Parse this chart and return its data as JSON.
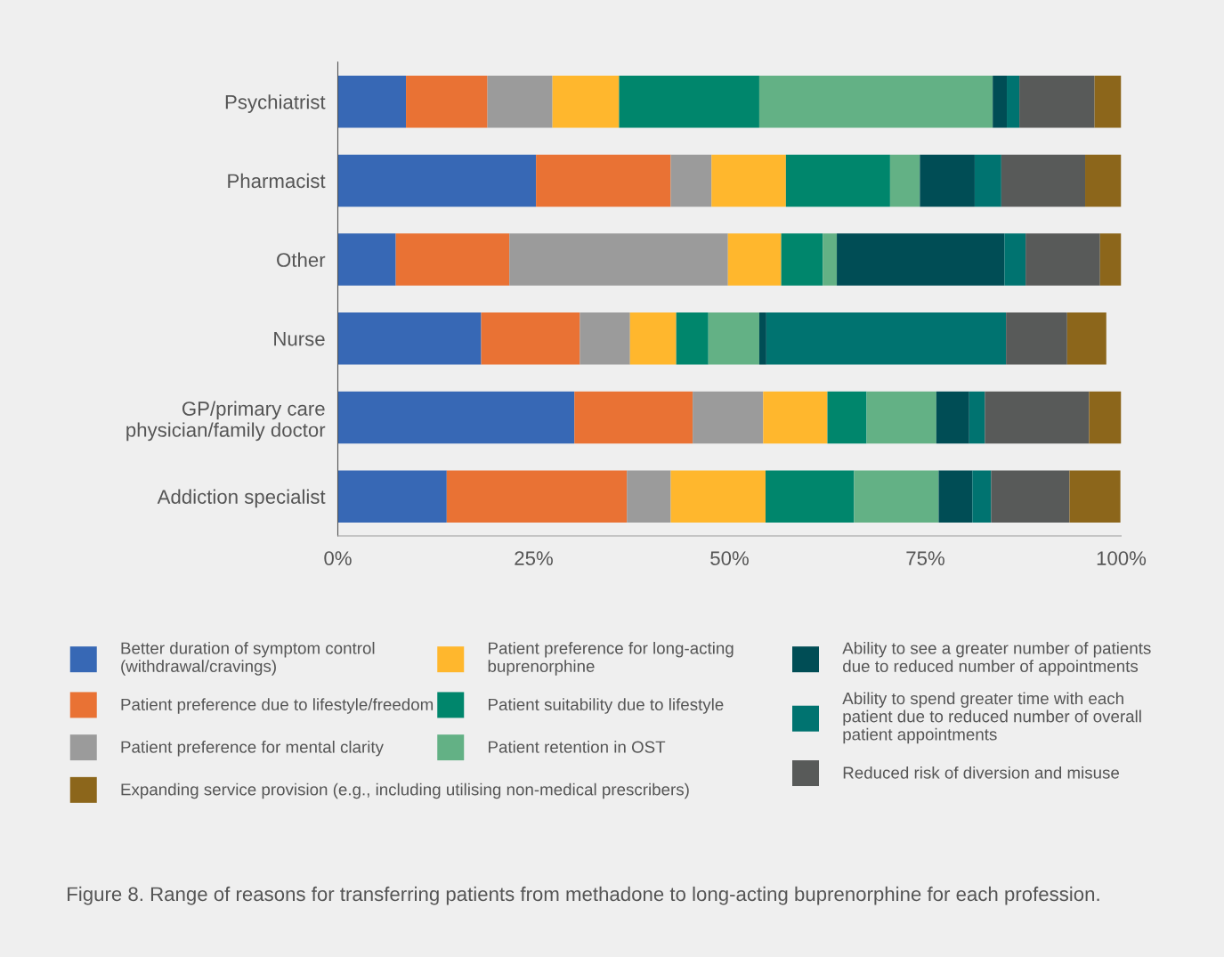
{
  "chart_data": {
    "type": "bar",
    "orientation": "horizontal",
    "stacked": true,
    "categories": [
      "Psychiatrist",
      "Pharmacist",
      "Other",
      "Nurse",
      "GP/primary care\nphysician/family doctor",
      "Addiction specialist"
    ],
    "series": [
      {
        "name": "Better duration of symptom control\n(withdrawal/cravings)",
        "color": "#3768b5",
        "values": [
          8.7,
          25.3,
          7.4,
          18.3,
          30.2,
          13.9
        ]
      },
      {
        "name": "Patient preference due to lifestyle/freedom",
        "color": "#e97234",
        "values": [
          10.4,
          17.2,
          14.5,
          12.6,
          15.1,
          23.0
        ]
      },
      {
        "name": "Patient preference for mental clarity",
        "color": "#9b9b9b",
        "values": [
          8.3,
          5.2,
          27.9,
          6.4,
          9.0,
          5.6
        ]
      },
      {
        "name": "Patient preference for long-acting\nbuprenorphine",
        "color": "#ffb72d",
        "values": [
          8.5,
          9.5,
          6.8,
          5.9,
          8.2,
          12.1
        ]
      },
      {
        "name": "Patient suitability due to lifestyle",
        "color": "#00866c",
        "values": [
          17.9,
          13.3,
          5.3,
          4.1,
          5.0,
          11.3
        ]
      },
      {
        "name": "Patient retention in OST",
        "color": "#63b185",
        "values": [
          29.8,
          3.8,
          1.8,
          6.5,
          8.9,
          10.8
        ]
      },
      {
        "name": "Ability to see a greater number of patients\ndue to reduced number of appointments",
        "color": "#004d55",
        "values": [
          1.8,
          7.0,
          21.4,
          0.9,
          4.2,
          4.3
        ]
      },
      {
        "name": "Ability to spend greater time with each\npatient due to reduced number of overall\npatient appointments",
        "color": "#007370",
        "values": [
          1.6,
          3.4,
          2.7,
          30.6,
          2.0,
          2.4
        ]
      },
      {
        "name": "Reduced risk of diversion and misuse",
        "color": "#585a59",
        "values": [
          9.6,
          10.7,
          9.5,
          7.8,
          13.3,
          10.0
        ]
      },
      {
        "name": "Expanding service provision (e.g., including utilising non-medical prescribers)",
        "color": "#8c661b",
        "values": [
          3.4,
          4.6,
          2.7,
          5.0,
          4.1,
          6.5
        ]
      }
    ],
    "xlim": [
      0,
      100
    ],
    "xticks": [
      {
        "value": 0,
        "label": "0%"
      },
      {
        "value": 25,
        "label": "25%"
      },
      {
        "value": 50,
        "label": "50%"
      },
      {
        "value": 75,
        "label": "75%"
      },
      {
        "value": 100,
        "label": "100%"
      }
    ],
    "grid": false,
    "legend": "bottom",
    "annotations": [
      "Figure 8. Range of reasons for transferring patients from methadone to long-acting buprenorphine for each profession."
    ]
  }
}
